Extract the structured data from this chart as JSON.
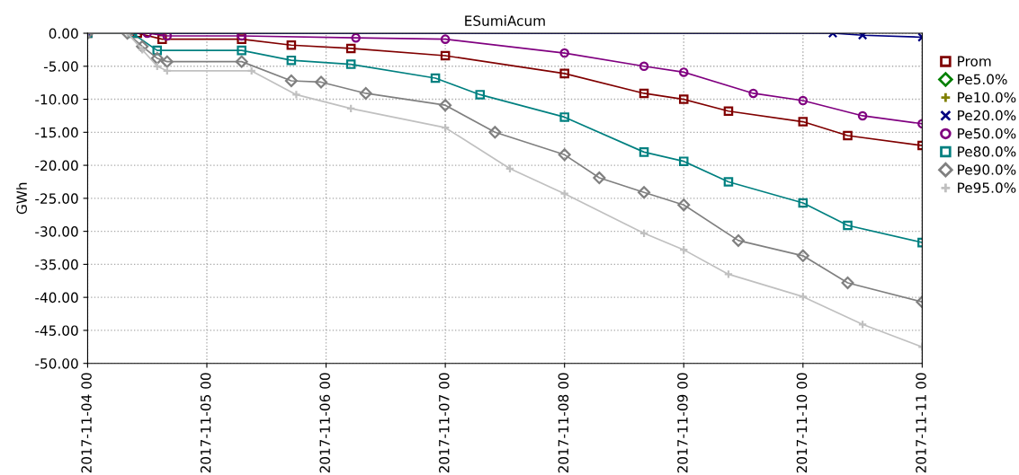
{
  "chart_data": {
    "type": "line",
    "title": "ESumiAcum",
    "ylabel": "GWh",
    "xlim": [
      "2017-11-04T00:00",
      "2017-11-11T00:00"
    ],
    "xticks": [
      {
        "value": "2017-11-04",
        "label": "2017-11-04 00"
      },
      {
        "value": "2017-11-05",
        "label": "2017-11-05 00"
      },
      {
        "value": "2017-11-06",
        "label": "2017-11-06 00"
      },
      {
        "value": "2017-11-07",
        "label": "2017-11-07 00"
      },
      {
        "value": "2017-11-08",
        "label": "2017-11-08 00"
      },
      {
        "value": "2017-11-09",
        "label": "2017-11-09 00"
      },
      {
        "value": "2017-11-10",
        "label": "2017-11-10 00"
      },
      {
        "value": "2017-11-11",
        "label": "2017-11-11 00"
      }
    ],
    "ylim": [
      -50,
      0
    ],
    "yticks": [
      {
        "value": -50,
        "label": "-50.00"
      },
      {
        "value": -45,
        "label": "-45.00"
      },
      {
        "value": -40,
        "label": "-40.00"
      },
      {
        "value": -35,
        "label": "-35.00"
      },
      {
        "value": -30,
        "label": "-30.00"
      },
      {
        "value": -25,
        "label": "-25.00"
      },
      {
        "value": -20,
        "label": "-20.00"
      },
      {
        "value": -15,
        "label": "-15.00"
      },
      {
        "value": -10,
        "label": "-10.00"
      },
      {
        "value": -5,
        "label": "-5.00"
      },
      {
        "value": 0,
        "label": "0.00"
      }
    ],
    "grid": true,
    "legend": "right",
    "line_style": "solid",
    "series": [
      {
        "name": "Prom",
        "color": "#800000",
        "marker": "square",
        "x": [
          "2017-11-04T00:00",
          "2017-11-04T10:00",
          "2017-11-04T15:00",
          "2017-11-05T07:00",
          "2017-11-05T17:00",
          "2017-11-06T05:00",
          "2017-11-07T00:00",
          "2017-11-08T00:00",
          "2017-11-08T16:00",
          "2017-11-09T00:00",
          "2017-11-09T09:00",
          "2017-11-10T00:00",
          "2017-11-10T09:00",
          "2017-11-11T00:00"
        ],
        "values": [
          0,
          0,
          -0.9,
          -0.9,
          -1.8,
          -2.3,
          -3.4,
          -6.1,
          -9.1,
          -10.0,
          -11.8,
          -13.4,
          -15.5,
          -17.0
        ]
      },
      {
        "name": "Pe5.0%",
        "color": "#008000",
        "marker": "diamond"
      },
      {
        "name": "Pe10.0%",
        "color": "#808000",
        "marker": "plus"
      },
      {
        "name": "Pe20.0%",
        "color": "#000080",
        "marker": "cross",
        "x": [
          "2017-11-04T00:00",
          "2017-11-10T06:00",
          "2017-11-10T12:00",
          "2017-11-11T00:00"
        ],
        "values": [
          0,
          0,
          -0.3,
          -0.6
        ]
      },
      {
        "name": "Pe50.0%",
        "color": "#800080",
        "marker": "circle",
        "x": [
          "2017-11-04T00:00",
          "2017-11-04T12:00",
          "2017-11-04T16:00",
          "2017-11-05T07:00",
          "2017-11-06T06:00",
          "2017-11-07T00:00",
          "2017-11-08T00:00",
          "2017-11-08T16:00",
          "2017-11-09T00:00",
          "2017-11-09T14:00",
          "2017-11-10T00:00",
          "2017-11-10T12:00",
          "2017-11-11T00:00"
        ],
        "values": [
          0,
          0,
          -0.4,
          -0.4,
          -0.7,
          -0.9,
          -3.0,
          -5.0,
          -5.9,
          -9.1,
          -10.2,
          -12.5,
          -13.7
        ]
      },
      {
        "name": "Pe80.0%",
        "color": "#008080",
        "marker": "square",
        "x": [
          "2017-11-04T00:00",
          "2017-11-04T09:00",
          "2017-11-04T14:00",
          "2017-11-05T07:00",
          "2017-11-05T17:00",
          "2017-11-06T05:00",
          "2017-11-06T22:00",
          "2017-11-07T07:00",
          "2017-11-08T00:00",
          "2017-11-08T16:00",
          "2017-11-09T00:00",
          "2017-11-09T09:00",
          "2017-11-10T00:00",
          "2017-11-10T09:00",
          "2017-11-11T00:00"
        ],
        "values": [
          0,
          0,
          -2.6,
          -2.6,
          -4.1,
          -4.7,
          -6.8,
          -9.3,
          -12.7,
          -18.0,
          -19.4,
          -22.5,
          -25.7,
          -29.1,
          -31.7
        ]
      },
      {
        "name": "Pe90.0%",
        "color": "#808080",
        "marker": "diamond",
        "x": [
          "2017-11-04T00:00",
          "2017-11-04T08:00",
          "2017-11-04T11:00",
          "2017-11-04T14:00",
          "2017-11-04T16:00",
          "2017-11-05T07:00",
          "2017-11-05T17:00",
          "2017-11-05T23:00",
          "2017-11-06T08:00",
          "2017-11-07T00:00",
          "2017-11-07T10:00",
          "2017-11-08T00:00",
          "2017-11-08T07:00",
          "2017-11-08T16:00",
          "2017-11-09T00:00",
          "2017-11-09T11:00",
          "2017-11-10T00:00",
          "2017-11-10T09:00",
          "2017-11-11T00:00"
        ],
        "values": [
          0,
          0,
          -2.0,
          -3.8,
          -4.3,
          -4.3,
          -7.2,
          -7.4,
          -9.1,
          -10.9,
          -15.0,
          -18.4,
          -21.9,
          -24.1,
          -26.0,
          -31.4,
          -33.7,
          -37.8,
          -40.7
        ]
      },
      {
        "name": "Pe95.0%",
        "color": "#c0c0c0",
        "marker": "plus",
        "x": [
          "2017-11-04T00:00",
          "2017-11-04T08:00",
          "2017-11-04T11:00",
          "2017-11-04T14:00",
          "2017-11-04T16:00",
          "2017-11-05T09:00",
          "2017-11-05T18:00",
          "2017-11-06T05:00",
          "2017-11-07T00:00",
          "2017-11-07T13:00",
          "2017-11-08T00:00",
          "2017-11-08T16:00",
          "2017-11-09T00:00",
          "2017-11-09T09:00",
          "2017-11-10T00:00",
          "2017-11-10T12:00",
          "2017-11-11T00:00"
        ],
        "values": [
          0,
          0,
          -2.5,
          -5.0,
          -5.7,
          -5.7,
          -9.3,
          -11.4,
          -14.3,
          -20.5,
          -24.3,
          -30.3,
          -32.8,
          -36.5,
          -39.9,
          -44.1,
          -47.5
        ]
      }
    ]
  }
}
